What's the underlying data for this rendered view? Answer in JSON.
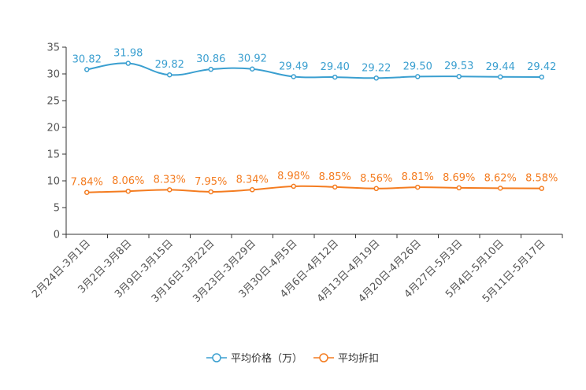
{
  "chart_data": {
    "type": "line",
    "title": "",
    "xlabel": "",
    "ylabel": "",
    "ylim": [
      0,
      35
    ],
    "yticks": [
      0,
      5,
      10,
      15,
      20,
      25,
      30,
      35
    ],
    "categories": [
      "2月24日-3月1日",
      "3月2日-3月8日",
      "3月9日-3月15日",
      "3月16日-3月22日",
      "3月23日-3月29日",
      "3月30日-4月5日",
      "4月6日-4月12日",
      "4月13日-4月19日",
      "4月20日-4月26日",
      "4月27日-5月3日",
      "5月4日-5月10日",
      "5月11日-5月17日"
    ],
    "series": [
      {
        "name": "平均价格（万）",
        "color": "#3a9fd0",
        "values": [
          30.82,
          31.98,
          29.82,
          30.86,
          30.92,
          29.49,
          29.4,
          29.22,
          29.5,
          29.53,
          29.44,
          29.42
        ],
        "labels": [
          "30.82",
          "31.98",
          "29.82",
          "30.86",
          "30.92",
          "29.49",
          "29.40",
          "29.22",
          "29.50",
          "29.53",
          "29.44",
          "29.42"
        ]
      },
      {
        "name": "平均折扣",
        "color": "#f47c20",
        "values": [
          7.84,
          8.06,
          8.33,
          7.95,
          8.34,
          8.98,
          8.85,
          8.56,
          8.81,
          8.69,
          8.62,
          8.58
        ],
        "labels": [
          "7.84%",
          "8.06%",
          "8.33%",
          "7.95%",
          "8.34%",
          "8.98%",
          "8.85%",
          "8.56%",
          "8.81%",
          "8.69%",
          "8.62%",
          "8.58%"
        ]
      }
    ],
    "legend_position": "bottom-center"
  }
}
